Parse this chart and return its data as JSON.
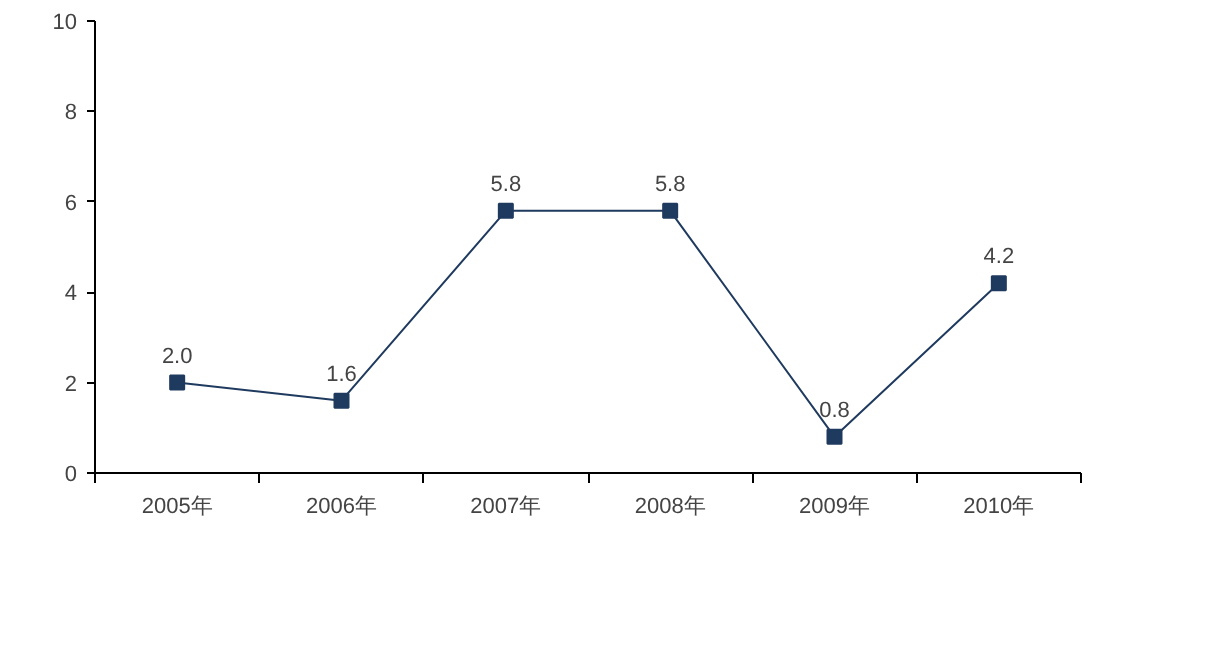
{
  "chart_data": {
    "type": "line",
    "categories": [
      "2005年",
      "2006年",
      "2007年",
      "2008年",
      "2009年",
      "2010年"
    ],
    "series": [
      {
        "color": "#1f3a5f",
        "values": [
          2.0,
          1.6,
          5.8,
          5.8,
          0.8,
          4.2
        ],
        "value_labels": [
          "2.0",
          "1.6",
          "5.8",
          "5.8",
          "0.8",
          "4.2"
        ]
      }
    ],
    "ylim": [
      0,
      10
    ],
    "yticks": [
      0,
      2,
      4,
      6,
      8,
      10
    ],
    "grid": false,
    "marker": "square",
    "line_style": "solid"
  }
}
